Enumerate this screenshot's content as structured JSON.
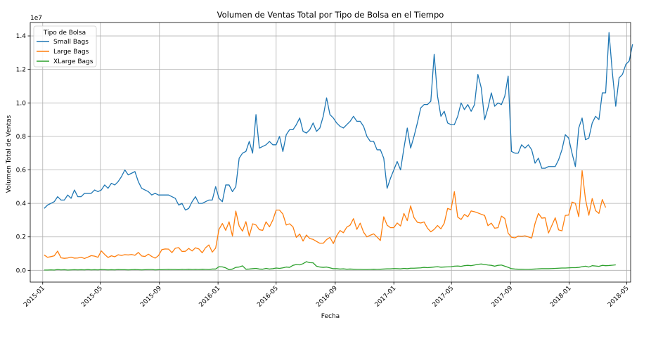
{
  "chart_data": {
    "type": "line",
    "title": "Volumen de Ventas Total por Tipo de Bolsa en el Tiempo",
    "xlabel": "Fecha",
    "ylabel": "Volumen Total de Ventas",
    "y_offset_label": "1e7",
    "y_scale": 10000000,
    "ylim": [
      -0.07,
      1.48
    ],
    "xlim": [
      "2014-12-06",
      "2018-05-09"
    ],
    "x_ticks": [
      "2015-01",
      "2015-05",
      "2015-09",
      "2016-01",
      "2016-05",
      "2016-09",
      "2017-01",
      "2017-05",
      "2017-09",
      "2018-01",
      "2018-05"
    ],
    "y_ticks": [
      "0.0",
      "0.2",
      "0.4",
      "0.6",
      "0.8",
      "1.0",
      "1.2",
      "1.4"
    ],
    "grid": true,
    "legend": {
      "title": "Tipo de Bolsa",
      "position": "top-left"
    },
    "start_date": "2015-01-04",
    "interval_days": 7,
    "series": [
      {
        "name": "Small Bags",
        "color": "#1f77b4",
        "values": [
          0.37,
          0.39,
          0.4,
          0.41,
          0.44,
          0.42,
          0.42,
          0.45,
          0.43,
          0.48,
          0.44,
          0.44,
          0.46,
          0.46,
          0.46,
          0.48,
          0.47,
          0.48,
          0.51,
          0.49,
          0.52,
          0.51,
          0.53,
          0.56,
          0.6,
          0.57,
          0.58,
          0.59,
          0.53,
          0.49,
          0.48,
          0.47,
          0.45,
          0.46,
          0.45,
          0.45,
          0.45,
          0.45,
          0.44,
          0.43,
          0.39,
          0.4,
          0.36,
          0.37,
          0.41,
          0.44,
          0.4,
          0.4,
          0.41,
          0.42,
          0.42,
          0.5,
          0.43,
          0.41,
          0.51,
          0.51,
          0.47,
          0.5,
          0.67,
          0.7,
          0.71,
          0.77,
          0.7,
          0.93,
          0.73,
          0.74,
          0.75,
          0.77,
          0.75,
          0.75,
          0.8,
          0.71,
          0.81,
          0.84,
          0.84,
          0.87,
          0.91,
          0.83,
          0.82,
          0.84,
          0.88,
          0.83,
          0.85,
          0.92,
          1.03,
          0.93,
          0.91,
          0.88,
          0.86,
          0.85,
          0.87,
          0.89,
          0.92,
          0.89,
          0.89,
          0.86,
          0.8,
          0.77,
          0.77,
          0.72,
          0.72,
          0.67,
          0.49,
          0.55,
          0.6,
          0.65,
          0.6,
          0.73,
          0.85,
          0.73,
          0.8,
          0.88,
          0.97,
          0.99,
          0.99,
          1.01,
          1.29,
          1.04,
          0.92,
          0.95,
          0.88,
          0.87,
          0.87,
          0.92,
          1.0,
          0.96,
          0.99,
          0.95,
          0.99,
          1.17,
          1.09,
          0.9,
          0.97,
          1.06,
          0.98,
          1.0,
          0.99,
          1.04,
          1.16,
          0.71,
          0.7,
          0.7,
          0.75,
          0.73,
          0.75,
          0.72,
          0.64,
          0.67,
          0.61,
          0.61,
          0.62,
          0.62,
          0.62,
          0.66,
          0.72,
          0.81,
          0.79,
          0.7,
          0.62,
          0.85,
          0.91,
          0.78,
          0.79,
          0.88,
          0.92,
          0.9,
          1.06,
          1.06,
          1.42,
          1.18,
          0.98,
          1.15,
          1.17,
          1.23,
          1.25,
          1.35
        ]
      },
      {
        "name": "Large Bags",
        "color": "#ff7f0e",
        "values": [
          0.092,
          0.078,
          0.082,
          0.087,
          0.115,
          0.075,
          0.072,
          0.074,
          0.079,
          0.073,
          0.074,
          0.078,
          0.071,
          0.079,
          0.088,
          0.085,
          0.078,
          0.116,
          0.095,
          0.077,
          0.087,
          0.081,
          0.093,
          0.089,
          0.094,
          0.092,
          0.095,
          0.09,
          0.107,
          0.086,
          0.083,
          0.097,
          0.083,
          0.073,
          0.088,
          0.124,
          0.128,
          0.127,
          0.106,
          0.132,
          0.136,
          0.113,
          0.114,
          0.131,
          0.116,
          0.135,
          0.128,
          0.105,
          0.135,
          0.152,
          0.109,
          0.133,
          0.245,
          0.28,
          0.239,
          0.29,
          0.205,
          0.354,
          0.265,
          0.234,
          0.291,
          0.205,
          0.278,
          0.271,
          0.243,
          0.239,
          0.29,
          0.26,
          0.3,
          0.36,
          0.36,
          0.336,
          0.271,
          0.278,
          0.26,
          0.197,
          0.217,
          0.175,
          0.211,
          0.19,
          0.185,
          0.173,
          0.162,
          0.162,
          0.184,
          0.197,
          0.16,
          0.207,
          0.238,
          0.225,
          0.258,
          0.27,
          0.309,
          0.245,
          0.282,
          0.228,
          0.2,
          0.21,
          0.218,
          0.199,
          0.178,
          0.32,
          0.27,
          0.255,
          0.255,
          0.283,
          0.265,
          0.34,
          0.297,
          0.385,
          0.315,
          0.287,
          0.283,
          0.289,
          0.252,
          0.23,
          0.245,
          0.268,
          0.248,
          0.282,
          0.37,
          0.362,
          0.47,
          0.318,
          0.304,
          0.334,
          0.32,
          0.355,
          0.35,
          0.343,
          0.335,
          0.328,
          0.267,
          0.282,
          0.252,
          0.255,
          0.324,
          0.31,
          0.222,
          0.198,
          0.194,
          0.205,
          0.203,
          0.206,
          0.2,
          0.193,
          0.28,
          0.34,
          0.312,
          0.314,
          0.223,
          0.268,
          0.314,
          0.242,
          0.236,
          0.328,
          0.33,
          0.408,
          0.4,
          0.32,
          0.595,
          0.425,
          0.329,
          0.429,
          0.357,
          0.34,
          0.423,
          0.375
        ]
      },
      {
        "name": "XLarge Bags",
        "color": "#2ca02c",
        "values": [
          0.002,
          0.002,
          0.003,
          0.002,
          0.005,
          0.003,
          0.004,
          0.002,
          0.003,
          0.004,
          0.003,
          0.004,
          0.003,
          0.005,
          0.003,
          0.004,
          0.003,
          0.005,
          0.004,
          0.003,
          0.004,
          0.003,
          0.005,
          0.004,
          0.004,
          0.003,
          0.004,
          0.005,
          0.004,
          0.003,
          0.004,
          0.005,
          0.005,
          0.003,
          0.004,
          0.004,
          0.005,
          0.006,
          0.005,
          0.005,
          0.004,
          0.006,
          0.005,
          0.007,
          0.005,
          0.006,
          0.005,
          0.007,
          0.006,
          0.005,
          0.008,
          0.008,
          0.022,
          0.021,
          0.015,
          0.004,
          0.008,
          0.018,
          0.02,
          0.027,
          0.007,
          0.008,
          0.01,
          0.012,
          0.008,
          0.007,
          0.012,
          0.008,
          0.01,
          0.014,
          0.012,
          0.015,
          0.02,
          0.018,
          0.03,
          0.035,
          0.033,
          0.04,
          0.052,
          0.046,
          0.045,
          0.025,
          0.02,
          0.018,
          0.02,
          0.015,
          0.01,
          0.01,
          0.008,
          0.009,
          0.007,
          0.008,
          0.007,
          0.006,
          0.006,
          0.005,
          0.005,
          0.006,
          0.007,
          0.006,
          0.007,
          0.008,
          0.009,
          0.009,
          0.011,
          0.01,
          0.009,
          0.012,
          0.01,
          0.013,
          0.013,
          0.014,
          0.015,
          0.018,
          0.016,
          0.018,
          0.02,
          0.022,
          0.019,
          0.02,
          0.021,
          0.022,
          0.025,
          0.026,
          0.024,
          0.028,
          0.03,
          0.028,
          0.032,
          0.036,
          0.038,
          0.035,
          0.032,
          0.03,
          0.025,
          0.03,
          0.032,
          0.025,
          0.018,
          0.01,
          0.008,
          0.007,
          0.007,
          0.006,
          0.006,
          0.007,
          0.008,
          0.009,
          0.01,
          0.01,
          0.01,
          0.011,
          0.012,
          0.013,
          0.014,
          0.014,
          0.015,
          0.016,
          0.016,
          0.018,
          0.022,
          0.025,
          0.02,
          0.028,
          0.026,
          0.024,
          0.03,
          0.028,
          0.029,
          0.031,
          0.033
        ]
      }
    ]
  }
}
